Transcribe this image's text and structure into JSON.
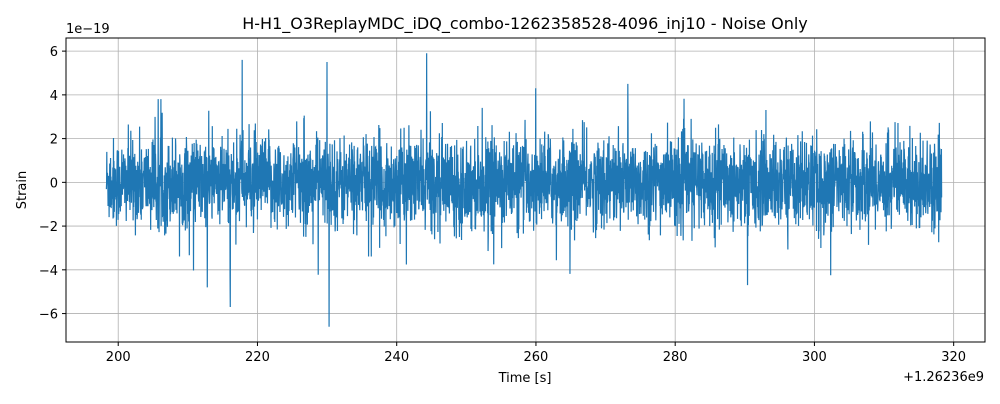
{
  "chart_data": {
    "type": "line",
    "title": "H-H1_O3ReplayMDC_iDQ_combo-1262358528-4096_inj10 - Noise Only",
    "xlabel": "Time [s]",
    "ylabel": "Strain",
    "x_offset_label": "+1.26236e9",
    "y_scale_label": "1e−19",
    "xlim": [
      192.5,
      324.5
    ],
    "ylim": [
      -7.3,
      6.6
    ],
    "x_ticks": [
      "200",
      "220",
      "240",
      "260",
      "280",
      "300",
      "320"
    ],
    "y_ticks": [
      "−6",
      "−4",
      "−2",
      "0",
      "2",
      "4",
      "6"
    ],
    "grid": true,
    "color": "#1f77b4",
    "series": [
      {
        "x_range": [
          198.3,
          318.3
        ],
        "typical_amplitude": 1.0,
        "notable_peaks": [
          {
            "x": 244.3,
            "y": 5.9
          },
          {
            "x": 217.8,
            "y": 5.6
          },
          {
            "x": 230.3,
            "y": -6.6
          },
          {
            "x": 216.1,
            "y": -5.7
          },
          {
            "x": 212.8,
            "y": -4.8
          },
          {
            "x": 290.4,
            "y": -4.7
          },
          {
            "x": 273.2,
            "y": 4.5
          },
          {
            "x": 230.0,
            "y": 5.5
          }
        ]
      }
    ]
  }
}
